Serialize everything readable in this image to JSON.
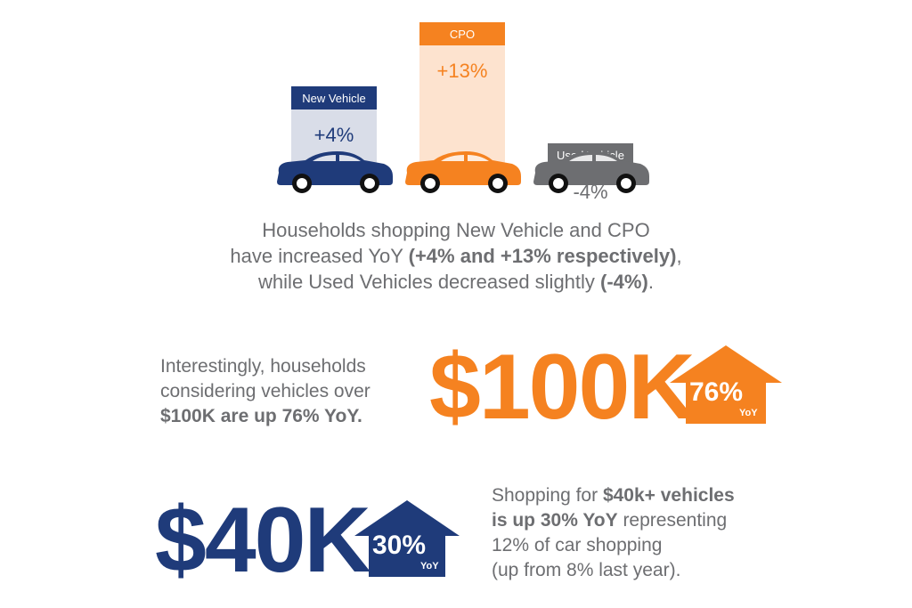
{
  "chart_data": {
    "type": "bar",
    "categories": [
      "New Vehicle",
      "CPO",
      "Used Vehicle"
    ],
    "values": [
      4,
      13,
      -4
    ],
    "value_labels": [
      "+4%",
      "+13%",
      "-4%"
    ],
    "title": "",
    "xlabel": "",
    "ylabel": "",
    "colors": [
      "#1f3b7a",
      "#f58220",
      "#6d6e71"
    ]
  },
  "caption": {
    "line1": "Households shopping New Vehicle and CPO",
    "line2_pre": "have increased YoY ",
    "line2_bold": "(+4% and +13% respectively)",
    "line2_post": ",",
    "line3_pre": "while Used Vehicles decreased slightly ",
    "line3_bold": "(-4%)",
    "line3_post": "."
  },
  "stat_100k": {
    "text_line1": "Interestingly, households",
    "text_line2": "considering vehicles over",
    "text_bold": "$100K are up 76% YoY.",
    "big": "$100K",
    "pct": "76%",
    "yoy": "YoY",
    "color": "#f58220"
  },
  "stat_40k": {
    "big": "$40K",
    "pct": "30%",
    "yoy": "YoY",
    "color": "#1f3b7a",
    "text_pre": "Shopping for ",
    "text_bold1": "$40k+ vehicles",
    "text_bold2": "is up 30% YoY",
    "text_mid": " representing",
    "text_line3": "12% of car shopping",
    "text_line4": "(up from 8% last year)."
  }
}
